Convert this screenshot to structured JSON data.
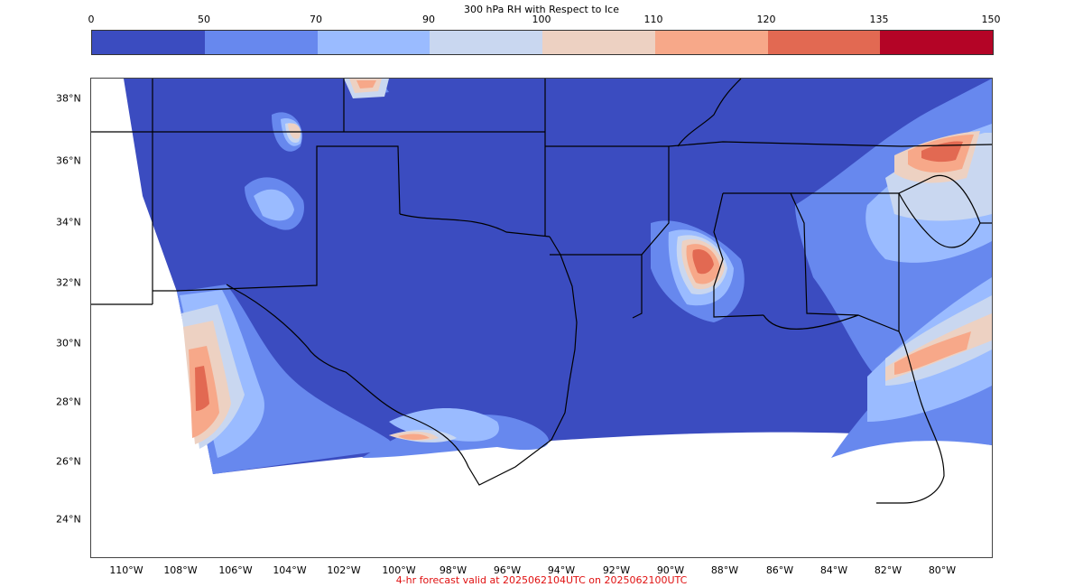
{
  "colorbar": {
    "title": "300 hPa RH with Respect to Ice",
    "ticks": [
      "0",
      "50",
      "70",
      "90",
      "100",
      "110",
      "120",
      "135",
      "150"
    ],
    "colors": [
      "#3b4cc0",
      "#6788ee",
      "#9abbff",
      "#c9d7f0",
      "#edd1c2",
      "#f7a889",
      "#e26952",
      "#b40426"
    ]
  },
  "map": {
    "lat_labels": [
      "38°N",
      "36°N",
      "34°N",
      "32°N",
      "30°N",
      "28°N",
      "26°N",
      "24°N"
    ],
    "lon_labels": [
      "110°W",
      "108°W",
      "106°W",
      "104°W",
      "102°W",
      "100°W",
      "98°W",
      "96°W",
      "94°W",
      "92°W",
      "90°W",
      "88°W",
      "86°W",
      "84°W",
      "82°W",
      "80°W"
    ]
  },
  "footer": {
    "forecast_note": "4-hr forecast valid at 2025062104UTC on 2025062100UTC"
  }
}
